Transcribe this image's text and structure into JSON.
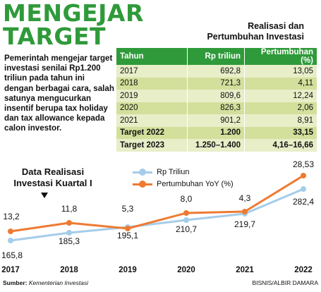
{
  "title": {
    "line1": "MENGEJAR",
    "line2": "TARGET"
  },
  "intro": "Pemerintah mengejar target investasi senilai Rp1.200 triliun pada tahun ini dengan berbagai cara, salah satunya mengucurkan insentif berupa tax holiday dan tax allowance kepada calon investor.",
  "table": {
    "title_line1": "Realisasi dan",
    "title_line2": "Pertumbuhan Investasi",
    "headers": [
      "Tahun",
      "Rp triliun",
      "Pertumbuhan (%)"
    ],
    "rows": [
      [
        "2017",
        "692,8",
        "13,05"
      ],
      [
        "2018",
        "721,3",
        "4,11"
      ],
      [
        "2019",
        "809,6",
        "12,24"
      ],
      [
        "2020",
        "826,3",
        "2,06"
      ],
      [
        "2021",
        "901,2",
        "8,91"
      ],
      [
        "Target 2022",
        "1.200",
        "33,15"
      ],
      [
        "Target 2023",
        "1.250–1.400",
        "4,16–16,66"
      ]
    ]
  },
  "chart_heading": {
    "line1": "Data Realisasi",
    "line2": "Investasi Kuartal I"
  },
  "colors": {
    "green": "#2f9a3a",
    "blue": "#a4cde9",
    "orange": "#ee7a31"
  },
  "chart_data": {
    "type": "line",
    "categories": [
      "2017",
      "2018",
      "2019",
      "2020",
      "2021",
      "2022"
    ],
    "series": [
      {
        "name": "Rp Triliun",
        "color": "#a4cde9",
        "values": [
          165.8,
          185.3,
          195.1,
          210.7,
          219.7,
          282.4
        ],
        "labels": [
          "165,8",
          "185,3",
          "195,1",
          "210,7",
          "219,7",
          "282,4"
        ]
      },
      {
        "name": "Pertumbuhan YoY (%)",
        "color": "#ee7a31",
        "values": [
          13.2,
          11.8,
          5.3,
          8.0,
          4.3,
          28.53
        ],
        "labels": [
          "13,2",
          "11,8",
          "5,3",
          "8,0",
          "4,3",
          "28,53"
        ]
      }
    ]
  },
  "footer": {
    "source_label": "Sumber:",
    "source_value": "Kementerian Investasi",
    "credit": "BISNIS/ALBIR DAMARA"
  }
}
